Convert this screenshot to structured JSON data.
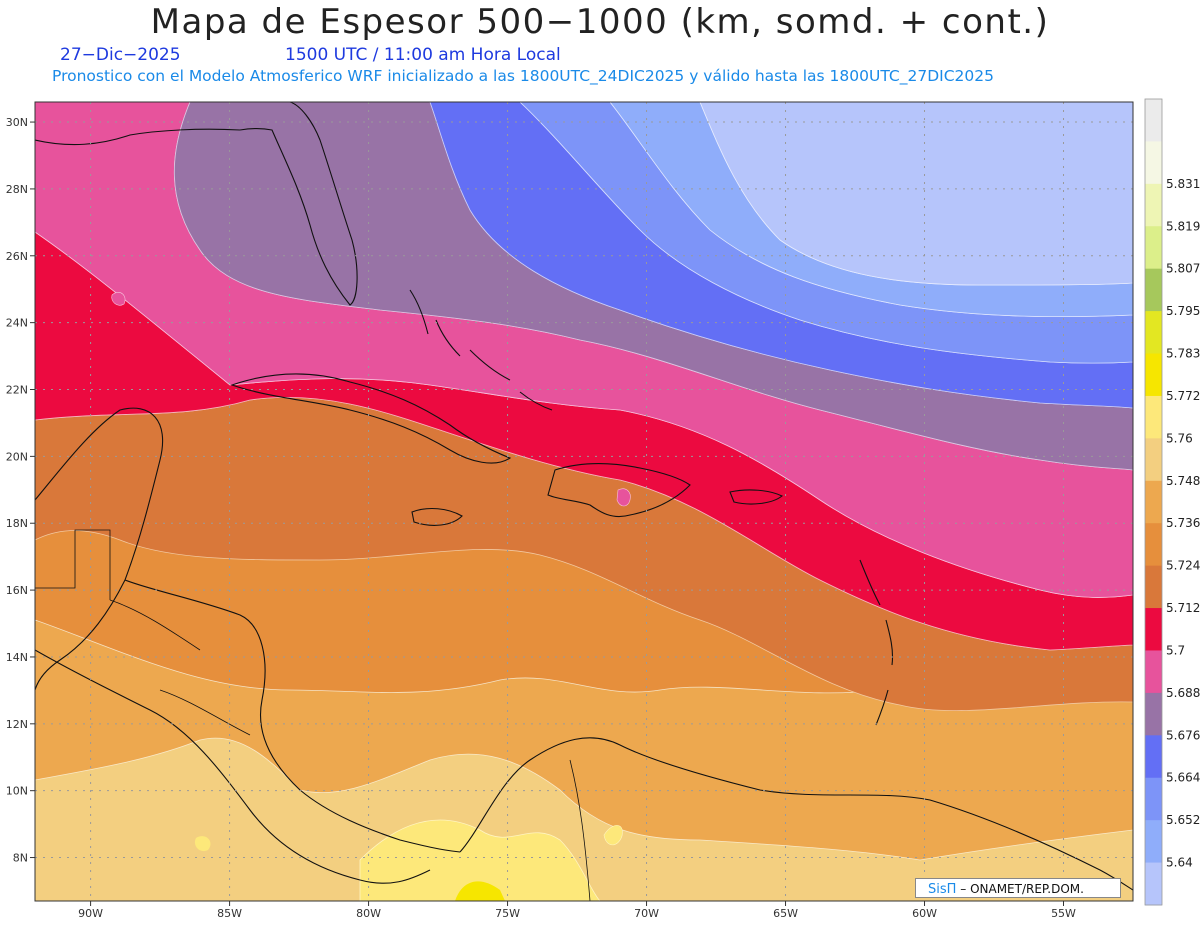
{
  "header": {
    "title": "Mapa de Espesor 500−1000 (km, somd. + cont.)",
    "date": "27−Dic−2025",
    "time": "1500 UTC / 11:00 am Hora Local",
    "subtitle": "Pronostico con el Modelo Atmosferico WRF inicializado a las 1800UTC_24DIC2025 y válido hasta las  1800UTC_27DIC2025"
  },
  "axes": {
    "lon_range": [
      -92,
      -52.5
    ],
    "lat_range": [
      6.7,
      30.6
    ],
    "x_ticks": [
      {
        "lon": -90,
        "label": "90W"
      },
      {
        "lon": -85,
        "label": "85W"
      },
      {
        "lon": -80,
        "label": "80W"
      },
      {
        "lon": -75,
        "label": "75W"
      },
      {
        "lon": -70,
        "label": "70W"
      },
      {
        "lon": -65,
        "label": "65W"
      },
      {
        "lon": -60,
        "label": "60W"
      },
      {
        "lon": -55,
        "label": "55W"
      }
    ],
    "y_ticks": [
      {
        "lat": 30,
        "label": "30N"
      },
      {
        "lat": 28,
        "label": "28N"
      },
      {
        "lat": 26,
        "label": "26N"
      },
      {
        "lat": 24,
        "label": "24N"
      },
      {
        "lat": 22,
        "label": "22N"
      },
      {
        "lat": 20,
        "label": "20N"
      },
      {
        "lat": 18,
        "label": "18N"
      },
      {
        "lat": 16,
        "label": "16N"
      },
      {
        "lat": 14,
        "label": "14N"
      },
      {
        "lat": 12,
        "label": "12N"
      },
      {
        "lat": 10,
        "label": "10N"
      },
      {
        "lat": 8,
        "label": "8N"
      }
    ],
    "grid": true
  },
  "colorbar": {
    "levels": [
      {
        "label": "",
        "color": "#ebebeb"
      },
      {
        "label": "5.831",
        "color": "#f5f7e4"
      },
      {
        "label": "5.819",
        "color": "#eef5b4"
      },
      {
        "label": "5.807",
        "color": "#dcef8a"
      },
      {
        "label": "5.795",
        "color": "#a6c85c"
      },
      {
        "label": "5.783",
        "color": "#e3e722"
      },
      {
        "label": "5.772",
        "color": "#f6e600"
      },
      {
        "label": "5.76",
        "color": "#fde87a"
      },
      {
        "label": "5.748",
        "color": "#f3cf80"
      },
      {
        "label": "5.736",
        "color": "#eda84f"
      },
      {
        "label": "5.724",
        "color": "#e68f3c"
      },
      {
        "label": "5.712",
        "color": "#d9783a"
      },
      {
        "label": "5.7",
        "color": "#ec0a40"
      },
      {
        "label": "5.688",
        "color": "#e7539c"
      },
      {
        "label": "5.676",
        "color": "#9873a6"
      },
      {
        "label": "5.664",
        "color": "#636ff5"
      },
      {
        "label": "5.652",
        "color": "#7d94f8"
      },
      {
        "label": "5.64",
        "color": "#8fadfa"
      },
      {
        "label": "",
        "color": "#b6c5fb"
      }
    ]
  },
  "credit": {
    "logo": "SisΠ",
    "org": "– ONAMET/REP.DOM."
  }
}
